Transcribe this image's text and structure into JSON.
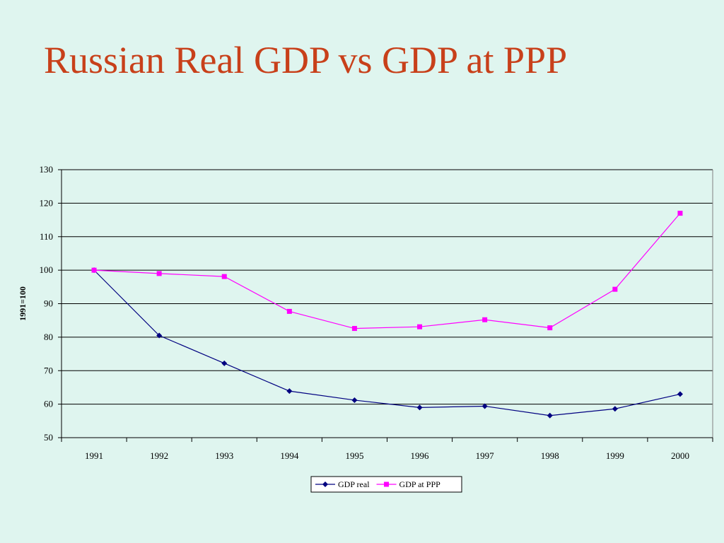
{
  "slide": {
    "title": "Russian Real GDP vs GDP at PPP"
  },
  "chart_data": {
    "type": "line",
    "title": "",
    "xlabel": "",
    "ylabel": "1991=100",
    "ylim": [
      50,
      130
    ],
    "ytick_step": 10,
    "grid": true,
    "legend_position": "bottom-center",
    "x": [
      "1991",
      "1992",
      "1993",
      "1994",
      "1995",
      "1996",
      "1997",
      "1998",
      "1999",
      "2000"
    ],
    "series": [
      {
        "name": "GDP real",
        "color": "#000080",
        "marker": "diamond",
        "values": [
          100,
          80.5,
          72.2,
          63.9,
          61.2,
          59.0,
          59.4,
          56.6,
          58.6,
          63.0
        ]
      },
      {
        "name": "GDP at PPP",
        "color": "#ff00ff",
        "marker": "square",
        "values": [
          100,
          99.0,
          98.1,
          87.7,
          82.6,
          83.1,
          85.2,
          82.8,
          94.3,
          117.0
        ]
      }
    ]
  }
}
